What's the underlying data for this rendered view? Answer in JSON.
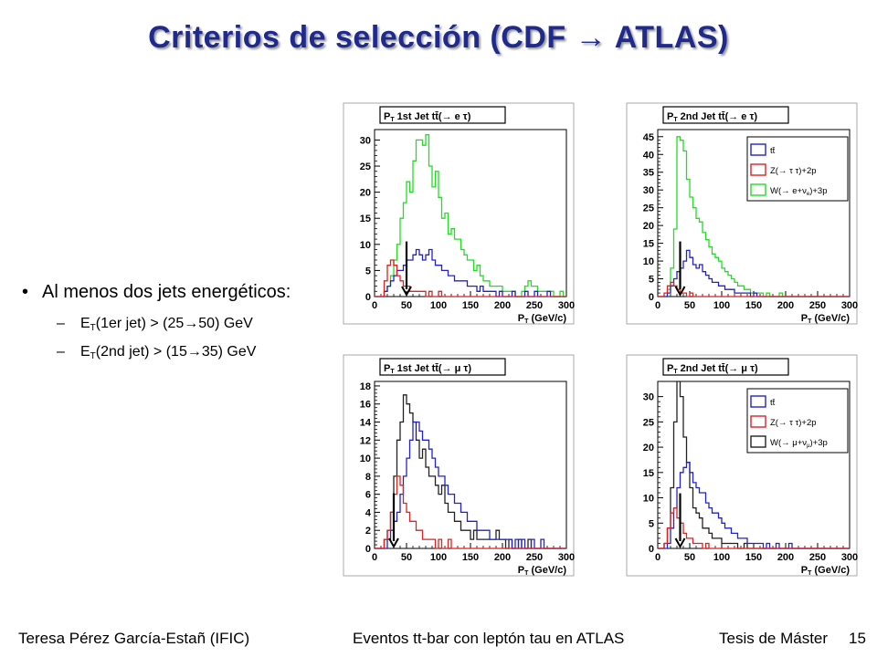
{
  "slide": {
    "title": "Criterios de selección (CDF → ATLAS)",
    "bullet": "Al menos dos jets energéticos:",
    "sub1": {
      "prefix": "E",
      "sub": "T",
      "text": "(1er jet) > (25",
      "arrow": "→",
      "text2": "50) GeV"
    },
    "sub2": {
      "prefix": "E",
      "sub": "T",
      "text": "(2nd jet) > (15",
      "arrow": "→",
      "text2": "35) GeV"
    },
    "footer": {
      "author": "Teresa Pérez García-Estañ (IFIC)",
      "topic": "Eventos tt-bar con leptón tau en ATLAS",
      "thesis": "Tesis de Máster",
      "page": "15"
    }
  },
  "chart_data": [
    {
      "type": "line",
      "title": "PT 1st Jet tt̄(→ e τ)",
      "title_main": "P",
      "title_sub": "T",
      "title_rest": " 1st Jet tt̄(→ e τ)",
      "xlabel_main": "P",
      "xlabel_sub": "T",
      "xlabel_rest": " (GeV/c)",
      "xlim": [
        0,
        300
      ],
      "ylim": [
        0,
        32
      ],
      "xticks": [
        "0",
        "50",
        "100",
        "150",
        "200",
        "250",
        "300"
      ],
      "yticks": [
        "0",
        "5",
        "10",
        "15",
        "20",
        "25",
        "30"
      ],
      "ytick_values": [
        0,
        5,
        10,
        15,
        20,
        25,
        30
      ],
      "cut": 50,
      "legend": null,
      "series": [
        {
          "color": "#22dd22",
          "values": [
            0,
            0,
            0,
            1,
            2,
            4,
            7,
            10,
            15,
            18,
            22,
            20,
            26,
            30,
            30,
            29,
            31,
            25,
            21,
            24,
            19,
            15,
            16,
            12,
            13,
            11,
            11,
            9,
            8,
            7,
            7,
            5,
            6,
            4,
            3,
            3,
            2,
            2,
            2,
            2,
            1,
            1,
            1,
            1,
            0,
            0,
            1,
            2,
            3,
            2,
            2,
            1,
            1,
            1,
            1,
            1,
            0,
            0,
            1,
            0
          ]
        },
        {
          "color": "#2222cc",
          "values": [
            0,
            0,
            0,
            1,
            2,
            3,
            4,
            5,
            5,
            6,
            7,
            7,
            8,
            9,
            8,
            7,
            8,
            9,
            7,
            6,
            6,
            5,
            5,
            4,
            4,
            3,
            3,
            3,
            3,
            2,
            2,
            2,
            1,
            2,
            1,
            1,
            1,
            1,
            0,
            1,
            0,
            0,
            0,
            1,
            0,
            0,
            0,
            1,
            0,
            0,
            1,
            0,
            0,
            0,
            1,
            0,
            0,
            0,
            0,
            0
          ]
        },
        {
          "color": "#dd2222",
          "values": [
            0,
            0,
            0,
            3,
            6,
            7,
            6,
            4,
            3,
            2,
            2,
            1,
            1,
            1,
            1,
            1,
            0,
            1,
            0,
            0,
            1,
            0,
            0,
            0,
            0,
            0,
            0,
            0,
            0,
            0,
            0,
            0,
            0,
            0,
            0,
            0,
            0,
            0,
            0,
            0,
            0,
            0,
            0,
            0,
            0,
            0,
            0,
            0,
            0,
            0,
            0,
            0,
            0,
            0,
            0,
            0,
            0,
            0,
            0,
            0
          ]
        }
      ]
    },
    {
      "type": "line",
      "title": "PT 2nd Jet tt̄(→ e τ)",
      "title_main": "P",
      "title_sub": "T",
      "title_rest": " 2nd Jet tt̄(→ e τ)",
      "xlabel_main": "P",
      "xlabel_sub": "T",
      "xlabel_rest": " (GeV/c)",
      "xlim": [
        0,
        300
      ],
      "ylim": [
        0,
        47
      ],
      "xticks": [
        "0",
        "50",
        "100",
        "150",
        "200",
        "250",
        "300"
      ],
      "yticks": [
        "0",
        "5",
        "10",
        "15",
        "20",
        "25",
        "30",
        "35",
        "40",
        "45"
      ],
      "ytick_values": [
        0,
        5,
        10,
        15,
        20,
        25,
        30,
        35,
        40,
        45
      ],
      "cut": 35,
      "legend": [
        "tt̄",
        "Z(→ τ τ)+2p",
        "W(→ e+ν",
        "e",
        ")+3p"
      ],
      "series": [
        {
          "color": "#22dd22",
          "values": [
            0,
            0,
            0,
            2,
            8,
            19,
            45,
            44,
            41,
            33,
            28,
            25,
            22,
            21,
            18,
            16,
            14,
            12,
            11,
            10,
            8,
            7,
            6,
            5,
            4,
            3,
            3,
            2,
            2,
            1,
            1,
            1,
            1,
            0,
            1,
            0,
            0,
            0,
            1,
            0,
            0,
            0,
            0,
            0,
            0,
            0,
            0,
            0,
            0,
            0,
            0,
            0,
            0,
            0,
            0,
            0,
            0,
            0,
            0,
            0
          ]
        },
        {
          "color": "#2222cc",
          "values": [
            0,
            0,
            0,
            1,
            3,
            5,
            7,
            8,
            10,
            13,
            11,
            9,
            8,
            9,
            7,
            6,
            5,
            4,
            4,
            3,
            3,
            2,
            2,
            2,
            1,
            1,
            1,
            1,
            1,
            0,
            1,
            0,
            0,
            0,
            0,
            0,
            0,
            0,
            0,
            0,
            0,
            0,
            0,
            0,
            0,
            0,
            0,
            0,
            0,
            0,
            0,
            0,
            0,
            0,
            0,
            0,
            0,
            0,
            0,
            0
          ]
        },
        {
          "color": "#dd2222",
          "values": [
            0,
            0,
            1,
            3,
            4,
            3,
            2,
            1,
            1,
            0,
            1,
            0,
            0,
            0,
            0,
            0,
            0,
            0,
            0,
            0,
            0,
            0,
            0,
            0,
            0,
            0,
            0,
            0,
            0,
            0,
            0,
            0,
            0,
            0,
            0,
            0,
            0,
            0,
            0,
            0,
            0,
            0,
            0,
            0,
            0,
            0,
            0,
            0,
            0,
            0,
            0,
            0,
            0,
            0,
            0,
            0,
            0,
            0,
            0,
            0
          ]
        }
      ]
    },
    {
      "type": "line",
      "title": "PT 1st Jet tt̄(→ μ τ)",
      "title_main": "P",
      "title_sub": "T",
      "title_rest": " 1st Jet tt̄(→ μ τ)",
      "xlabel_main": "P",
      "xlabel_sub": "T",
      "xlabel_rest": " (GeV/c)",
      "xlim": [
        0,
        300
      ],
      "ylim": [
        0,
        18.5
      ],
      "xticks": [
        "0",
        "50",
        "100",
        "150",
        "200",
        "250",
        "300"
      ],
      "yticks": [
        "0",
        "2",
        "4",
        "6",
        "8",
        "10",
        "12",
        "14",
        "16",
        "18"
      ],
      "ytick_values": [
        0,
        2,
        4,
        6,
        8,
        10,
        12,
        14,
        16,
        18
      ],
      "cut": 30,
      "legend": null,
      "series": [
        {
          "color": "#222222",
          "values": [
            0,
            0,
            0,
            1,
            2,
            4,
            8,
            12,
            14,
            17,
            16,
            15,
            14,
            12,
            10,
            11,
            9,
            8,
            8,
            7,
            6,
            7,
            5,
            4,
            4,
            3,
            3,
            2,
            2,
            2,
            1,
            2,
            1,
            1,
            1,
            1,
            1,
            1,
            2,
            1,
            1,
            0,
            1,
            0,
            0,
            1,
            0,
            0,
            1,
            0,
            0,
            0,
            0,
            0,
            0,
            0,
            0,
            0,
            0,
            0
          ]
        },
        {
          "color": "#2222cc",
          "values": [
            0,
            0,
            0,
            0,
            1,
            2,
            3,
            4,
            6,
            8,
            10,
            12,
            14,
            14,
            13,
            12,
            12,
            11,
            10,
            9,
            8,
            8,
            7,
            6,
            6,
            5,
            5,
            4,
            4,
            3,
            3,
            3,
            2,
            2,
            2,
            2,
            1,
            1,
            1,
            1,
            1,
            1,
            1,
            0,
            1,
            0,
            1,
            0,
            0,
            1,
            0,
            0,
            1,
            0,
            0,
            0,
            0,
            0,
            0,
            0
          ]
        },
        {
          "color": "#dd2222",
          "values": [
            0,
            0,
            0,
            1,
            2,
            4,
            6,
            8,
            7,
            5,
            4,
            3,
            3,
            2,
            2,
            1,
            1,
            1,
            1,
            0,
            1,
            0,
            0,
            1,
            0,
            0,
            0,
            0,
            0,
            0,
            0,
            0,
            0,
            0,
            0,
            0,
            0,
            0,
            0,
            0,
            0,
            0,
            0,
            0,
            0,
            0,
            0,
            0,
            0,
            0,
            0,
            0,
            0,
            0,
            0,
            0,
            0,
            0,
            0,
            0
          ]
        }
      ]
    },
    {
      "type": "line",
      "title": "PT 2nd Jet tt̄(→ μ τ)",
      "title_main": "P",
      "title_sub": "T",
      "title_rest": " 2nd Jet tt̄(→ μ τ)",
      "xlabel_main": "P",
      "xlabel_sub": "T",
      "xlabel_rest": " (GeV/c)",
      "xlim": [
        0,
        300
      ],
      "ylim": [
        0,
        33
      ],
      "xticks": [
        "0",
        "50",
        "100",
        "150",
        "200",
        "250",
        "300"
      ],
      "yticks": [
        "0",
        "5",
        "10",
        "15",
        "20",
        "25",
        "30"
      ],
      "ytick_values": [
        0,
        5,
        10,
        15,
        20,
        25,
        30
      ],
      "cut": 35,
      "legend": [
        "tt̄",
        "Z(→ τ τ)+2p",
        "W(→ μ+ν",
        "μ",
        ")+3p"
      ],
      "series": [
        {
          "color": "#222222",
          "values": [
            0,
            0,
            1,
            4,
            12,
            25,
            33,
            30,
            22,
            17,
            12,
            8,
            7,
            6,
            4,
            4,
            3,
            2,
            2,
            2,
            1,
            1,
            1,
            1,
            1,
            0,
            0,
            1,
            0,
            0,
            0,
            0,
            0,
            0,
            0,
            0,
            0,
            0,
            0,
            0,
            0,
            0,
            0,
            0,
            0,
            0,
            0,
            0,
            0,
            0,
            0,
            0,
            0,
            0,
            0,
            0,
            0,
            0,
            0,
            0
          ]
        },
        {
          "color": "#2222cc",
          "values": [
            0,
            0,
            0,
            1,
            4,
            8,
            12,
            15,
            16,
            17,
            15,
            13,
            12,
            11,
            11,
            9,
            8,
            7,
            7,
            6,
            5,
            4,
            4,
            3,
            3,
            2,
            2,
            2,
            1,
            1,
            1,
            1,
            1,
            0,
            1,
            0,
            0,
            1,
            0,
            0,
            0,
            1,
            0,
            0,
            0,
            0,
            0,
            0,
            0,
            0,
            0,
            0,
            0,
            0,
            0,
            0,
            0,
            0,
            0,
            0
          ]
        },
        {
          "color": "#dd2222",
          "values": [
            0,
            0,
            1,
            4,
            7,
            8,
            6,
            5,
            3,
            2,
            2,
            1,
            1,
            1,
            0,
            1,
            0,
            0,
            0,
            0,
            0,
            0,
            0,
            0,
            0,
            0,
            0,
            0,
            0,
            0,
            0,
            0,
            0,
            0,
            0,
            0,
            0,
            0,
            0,
            0,
            0,
            0,
            0,
            0,
            0,
            0,
            0,
            0,
            0,
            0,
            0,
            0,
            0,
            0,
            0,
            0,
            0,
            0,
            0,
            0
          ]
        }
      ]
    }
  ]
}
